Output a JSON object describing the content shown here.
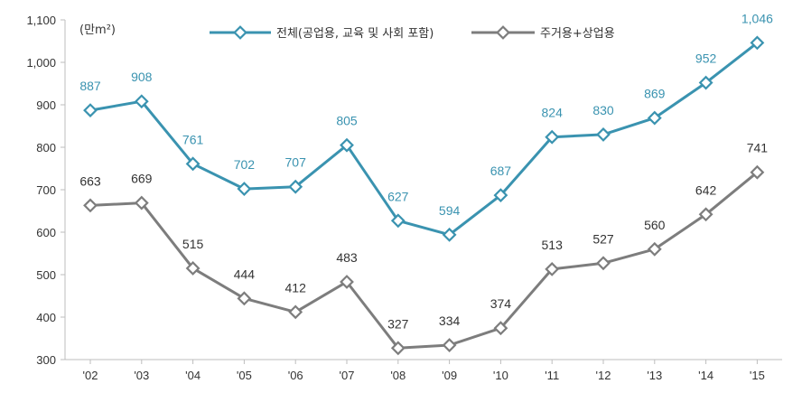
{
  "chart_data": {
    "type": "line",
    "unit_label": "(만m²)",
    "categories": [
      "'02",
      "'03",
      "'04",
      "'05",
      "'06",
      "'07",
      "'08",
      "'09",
      "'10",
      "'11",
      "'12",
      "'13",
      "'14",
      "'15"
    ],
    "y_ticks": [
      "300",
      "400",
      "500",
      "600",
      "700",
      "800",
      "900",
      "1,000",
      "1,100"
    ],
    "ylim": [
      300,
      1100
    ],
    "grid": false,
    "legend_position": "top",
    "series": [
      {
        "name": "전체(공업용, 교육 및 사회 포함)",
        "color": "#3a93b0",
        "values": [
          887,
          908,
          761,
          702,
          707,
          805,
          627,
          594,
          687,
          824,
          830,
          869,
          952,
          1046
        ],
        "labels": [
          "887",
          "908",
          "761",
          "702",
          "707",
          "805",
          "627",
          "594",
          "687",
          "824",
          "830",
          "869",
          "952",
          "1,046"
        ],
        "label_color": "#3a93b0"
      },
      {
        "name": "주거용+상업용",
        "color": "#7d7d7d",
        "values": [
          663,
          669,
          515,
          444,
          412,
          483,
          327,
          334,
          374,
          513,
          527,
          560,
          642,
          741
        ],
        "labels": [
          "663",
          "669",
          "515",
          "444",
          "412",
          "483",
          "327",
          "334",
          "374",
          "513",
          "527",
          "560",
          "642",
          "741"
        ],
        "label_color": "#333333"
      }
    ]
  }
}
